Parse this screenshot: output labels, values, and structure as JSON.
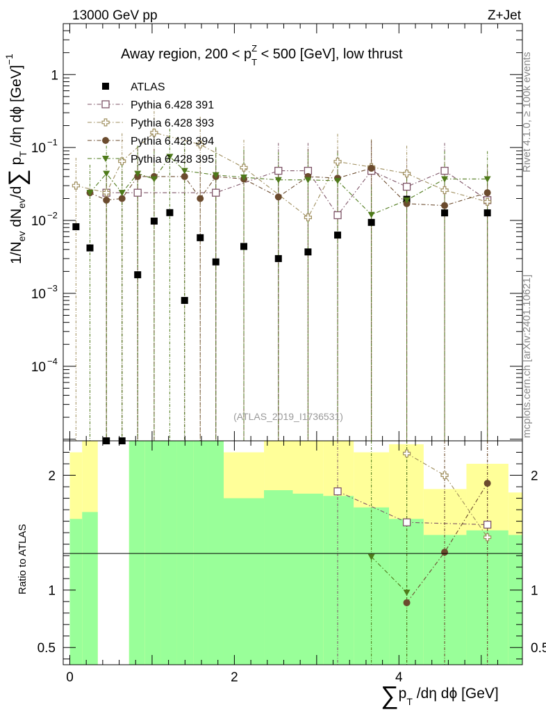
{
  "header": {
    "left": "13000 GeV pp",
    "right": "Z+Jet"
  },
  "side_labels": {
    "rivet": "Rivet 4.1.0, ≥ 100k events",
    "mcplots": "mcplots.cern.ch [arXiv:2401.10621]"
  },
  "chart_data": [
    {
      "type": "scatter",
      "name": "main",
      "title": "Away region, 200 < p_T^Z < 500 [GeV], low thrust",
      "watermark": "(ATLAS_2019_I1736531)",
      "ylabel": "1/N_ev dN_ev/d∑p_T/dη dφ [GeV]^-1",
      "yscale": "log",
      "ylim": [
        9.5e-06,
        5
      ],
      "xlim": [
        -0.08,
        5.5
      ],
      "yticks": [
        {
          "value": 1,
          "label": "1"
        },
        {
          "value": 0.1,
          "label": "10",
          "exp": "−1"
        },
        {
          "value": 0.01,
          "label": "10",
          "exp": "−2"
        },
        {
          "value": 0.001,
          "label": "10",
          "exp": "−3"
        },
        {
          "value": 0.0001,
          "label": "10",
          "exp": "−4"
        }
      ],
      "x": [
        0.075,
        0.245,
        0.445,
        0.635,
        0.825,
        1.025,
        1.215,
        1.395,
        1.585,
        1.775,
        2.115,
        2.535,
        2.895,
        3.255,
        3.665,
        4.095,
        4.555,
        5.075
      ],
      "series": [
        {
          "name": "ATLAS",
          "color": "#000000",
          "marker": "square-filled",
          "values": [
            0.0082,
            0.0042,
            9e-06,
            9e-06,
            0.0018,
            0.0098,
            0.0128,
            0.0008,
            0.0058,
            0.0027,
            0.0044,
            0.003,
            0.0037,
            0.0063,
            0.0094,
            0.0195,
            0.0127,
            0.0127
          ]
        },
        {
          "name": "Pythia 6.428 391",
          "color": "#7d5366",
          "marker": "square-open",
          "values": [
            null,
            null,
            0.024,
            null,
            0.024,
            null,
            null,
            null,
            null,
            0.024,
            null,
            0.048,
            0.048,
            0.0118,
            0.048,
            0.029,
            0.048,
            0.019
          ]
        },
        {
          "name": "Pythia 6.428 393",
          "color": "#9e8d5c",
          "marker": "cross-open",
          "values": [
            0.03,
            null,
            0.024,
            0.065,
            null,
            0.16,
            null,
            null,
            0.11,
            null,
            0.053,
            null,
            0.011,
            0.064,
            0.054,
            0.044,
            0.026,
            0.018
          ]
        },
        {
          "name": "Pythia 6.428 394",
          "color": "#6b4b2e",
          "marker": "circle-filled",
          "values": [
            null,
            0.024,
            0.019,
            0.02,
            0.04,
            0.04,
            null,
            0.04,
            0.02,
            0.04,
            0.037,
            0.021,
            0.04,
            0.038,
            0.052,
            0.017,
            0.016,
            0.024
          ]
        },
        {
          "name": "Pythia 6.428 395",
          "color": "#4e7a1a",
          "marker": "triangle-down-filled",
          "values": [
            null,
            0.024,
            0.044,
            0.024,
            0.044,
            0.037,
            0.075,
            0.048,
            null,
            0.042,
            0.039,
            0.036,
            0.036,
            0.035,
            0.012,
            0.019,
            0.037,
            0.037
          ]
        }
      ],
      "legend": [
        "ATLAS",
        "Pythia 6.428 391",
        "Pythia 6.428 393",
        "Pythia 6.428 394",
        "Pythia 6.428 395"
      ]
    },
    {
      "type": "scatter",
      "name": "ratio",
      "ylabel": "Ratio to ATLAS",
      "xlabel": "∑p_T/dη dφ [GeV]",
      "ylim": [
        0.35,
        2.3
      ],
      "xlim": [
        -0.08,
        5.5
      ],
      "xticks": [
        {
          "value": 0,
          "label": "0"
        },
        {
          "value": 2,
          "label": "2"
        },
        {
          "value": 4,
          "label": "4"
        }
      ],
      "yticks": [
        {
          "value": 0.5,
          "label": "0.5"
        },
        {
          "value": 1,
          "label": "1"
        },
        {
          "value": 2,
          "label": "2"
        }
      ],
      "bins": [
        0,
        0.15,
        0.34,
        0.72,
        0.91,
        1.11,
        1.3,
        1.5,
        1.68,
        1.87,
        2.36,
        2.71,
        3.08,
        3.45,
        3.88,
        4.3,
        4.82,
        5.33
      ],
      "band_green": [
        [
          0.35,
          1.62
        ],
        [
          0.35,
          1.68
        ],
        null,
        [
          0.35,
          2.3
        ],
        [
          0.35,
          2.3
        ],
        [
          0.35,
          2.3
        ],
        [
          0.35,
          2.3
        ],
        [
          0.35,
          2.3
        ],
        [
          0.35,
          2.3
        ],
        [
          0.35,
          1.8
        ],
        [
          0.35,
          1.87
        ],
        [
          0.35,
          1.84
        ],
        [
          0.35,
          1.82
        ],
        [
          0.35,
          1.72
        ],
        [
          0.35,
          1.62
        ],
        [
          0.35,
          1.48
        ],
        [
          0.35,
          1.52
        ],
        [
          0.35,
          1.48
        ]
      ],
      "band_yellow": [
        [
          0.35,
          2.2
        ],
        [
          0.35,
          2.3
        ],
        null,
        [
          0.35,
          2.3
        ],
        [
          0.35,
          2.3
        ],
        [
          0.35,
          2.2
        ],
        [
          0.35,
          2.3
        ],
        [
          0.35,
          2.3
        ],
        [
          0.35,
          2.3
        ],
        [
          0.35,
          2.2
        ],
        [
          0.35,
          2.3
        ],
        [
          0.35,
          2.3
        ],
        [
          0.35,
          2.3
        ],
        [
          0.35,
          2.2
        ],
        [
          0.35,
          2.27
        ],
        [
          0.35,
          1.88
        ],
        [
          0.35,
          2.1
        ],
        [
          0.35,
          1.85
        ]
      ],
      "series": [
        {
          "name": "Pythia 6.428 391",
          "color": "#7d5366",
          "marker": "square-open",
          "values": [
            null,
            null,
            null,
            null,
            null,
            null,
            null,
            null,
            null,
            null,
            null,
            null,
            null,
            1.86,
            null,
            1.59,
            null,
            1.57
          ]
        },
        {
          "name": "Pythia 6.428 393",
          "color": "#9e8d5c",
          "marker": "cross-open",
          "values": [
            null,
            null,
            null,
            null,
            null,
            null,
            null,
            null,
            null,
            null,
            null,
            null,
            null,
            null,
            null,
            2.19,
            2.0,
            1.46
          ]
        },
        {
          "name": "Pythia 6.428 394",
          "color": "#6b4b2e",
          "marker": "circle-filled",
          "values": [
            null,
            null,
            null,
            null,
            null,
            null,
            null,
            null,
            null,
            null,
            null,
            null,
            null,
            null,
            null,
            0.89,
            1.33,
            1.93
          ]
        },
        {
          "name": "Pythia 6.428 395",
          "color": "#4e7a1a",
          "marker": "triangle-down-filled",
          "values": [
            null,
            null,
            null,
            null,
            null,
            null,
            null,
            null,
            null,
            null,
            null,
            null,
            null,
            null,
            1.29,
            0.98,
            null,
            null
          ]
        }
      ]
    }
  ]
}
